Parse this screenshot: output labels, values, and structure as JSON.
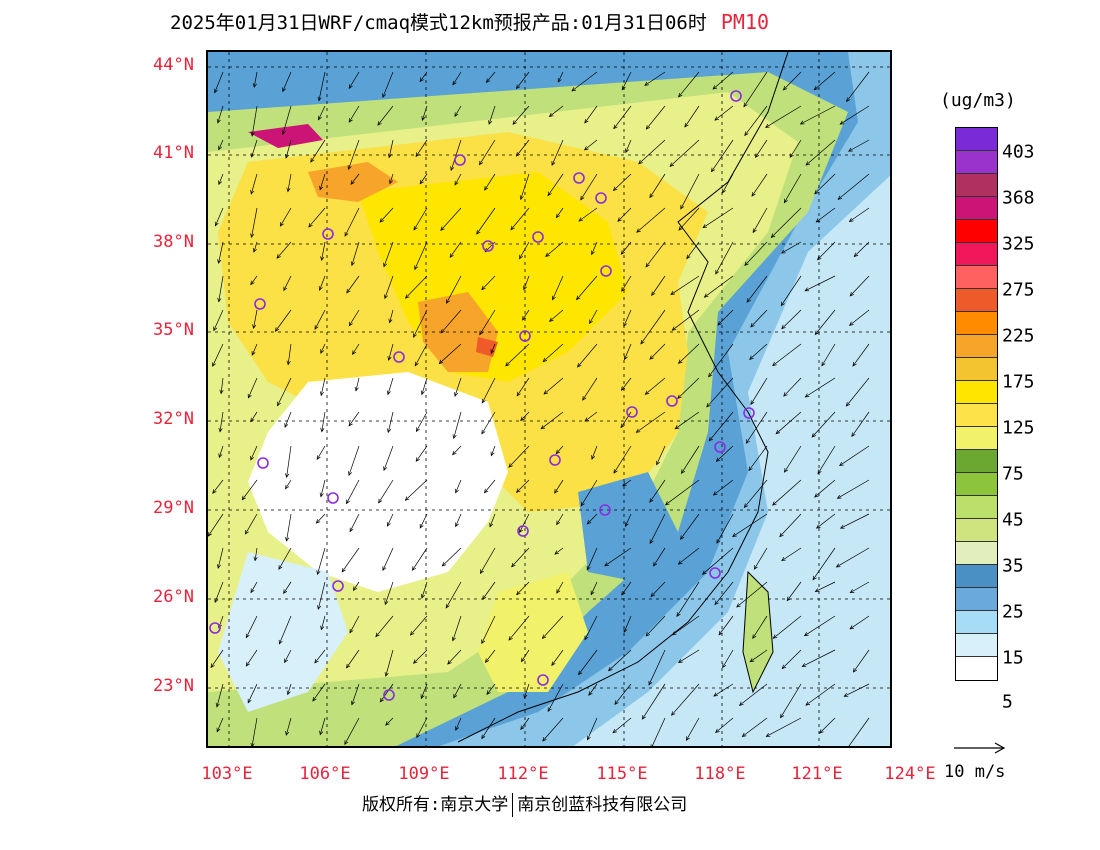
{
  "title": {
    "text": "2025年01月31日WRF/cmaq模式12km预报产品:01月31日06时",
    "pollutant": "PM10"
  },
  "lat_labels": [
    "44°N",
    "41°N",
    "38°N",
    "35°N",
    "32°N",
    "29°N",
    "26°N",
    "23°N"
  ],
  "lon_labels": [
    "103°E",
    "106°E",
    "109°E",
    "112°E",
    "115°E",
    "118°E",
    "121°E",
    "124°E"
  ],
  "legend": {
    "unit": "(ug/m3)",
    "labels": [
      "403",
      "368",
      "325",
      "275",
      "225",
      "175",
      "125",
      "75",
      "45",
      "35",
      "25",
      "15",
      "5"
    ],
    "colors": [
      "#7a2ad6",
      "#9a32cc",
      "#b03060",
      "#cc1477",
      "#ff0000",
      "#f0185a",
      "#ff6060",
      "#ef5a2a",
      "#ff8c00",
      "#f7a42a",
      "#f4c430",
      "#ffe600",
      "#fde24a",
      "#f2f26a",
      "#6aa832",
      "#8cc43c",
      "#bcdf6c",
      "#cfe37f",
      "#e3eebd",
      "#4a90c4",
      "#6aa9dc",
      "#a6dcf5",
      "#d8f0fa",
      "#ffffff"
    ]
  },
  "wind_reference": {
    "label": "10 m/s"
  },
  "copyright": {
    "left": "版权所有:南京大学",
    "right": "南京创蓝科技有限公司"
  },
  "colors": {
    "label_red": "#e8233a",
    "site_marker": "#8a2be2"
  }
}
